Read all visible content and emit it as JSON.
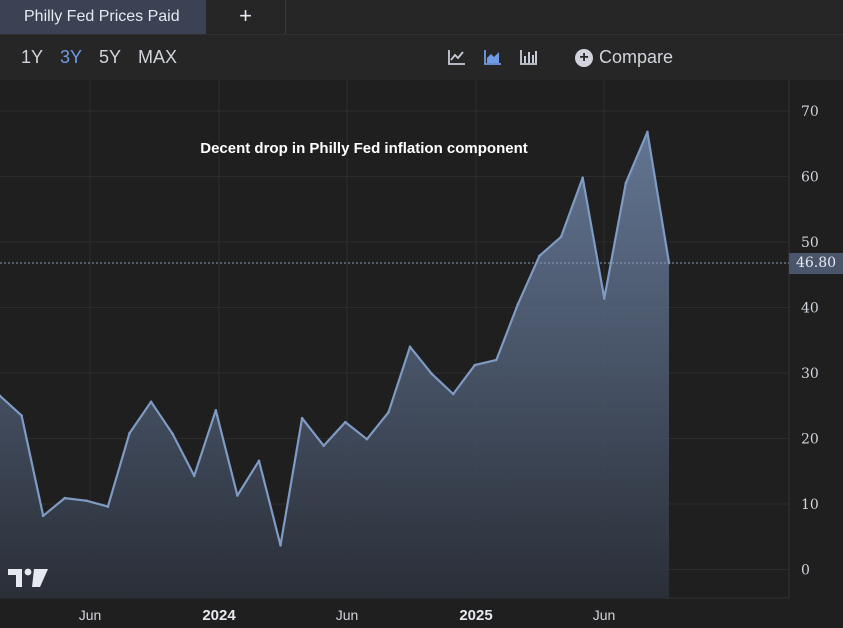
{
  "tabs": {
    "active_label": "Philly Fed Prices Paid",
    "add_label": "+"
  },
  "toolbar": {
    "ranges": [
      "1Y",
      "3Y",
      "5Y",
      "MAX"
    ],
    "active_range": "3Y",
    "chart_type_icons": [
      "line-chart-icon",
      "area-chart-icon",
      "bar-chart-icon"
    ],
    "compare_label": "Compare"
  },
  "colors": {
    "line": "#7f9bc4",
    "accent": "#6f9be6",
    "price_tag": "#4a556b"
  },
  "chart_data": {
    "type": "area",
    "title": "Decent drop in Philly Fed inflation component",
    "series": [
      {
        "values": [
          26.5,
          23.5,
          8.2,
          10.9,
          10.5,
          9.6,
          20.8,
          25.6,
          20.7,
          14.3,
          24.3,
          11.3,
          16.6,
          3.7,
          23.1,
          18.9,
          22.5,
          19.9,
          24.0,
          34.0,
          29.9,
          26.8,
          31.2,
          32.0,
          40.5,
          47.9,
          50.8,
          59.8,
          41.4,
          59.0,
          66.8,
          46.8
        ]
      }
    ],
    "x_tick_labels": [
      "Jun",
      "2024",
      "Jun",
      "2025",
      "Jun"
    ],
    "y_ticks": [
      0,
      10,
      20,
      30,
      40,
      50,
      60,
      70
    ],
    "ylim": [
      -5,
      75
    ],
    "last_value_label": "46.80",
    "grid": true
  }
}
